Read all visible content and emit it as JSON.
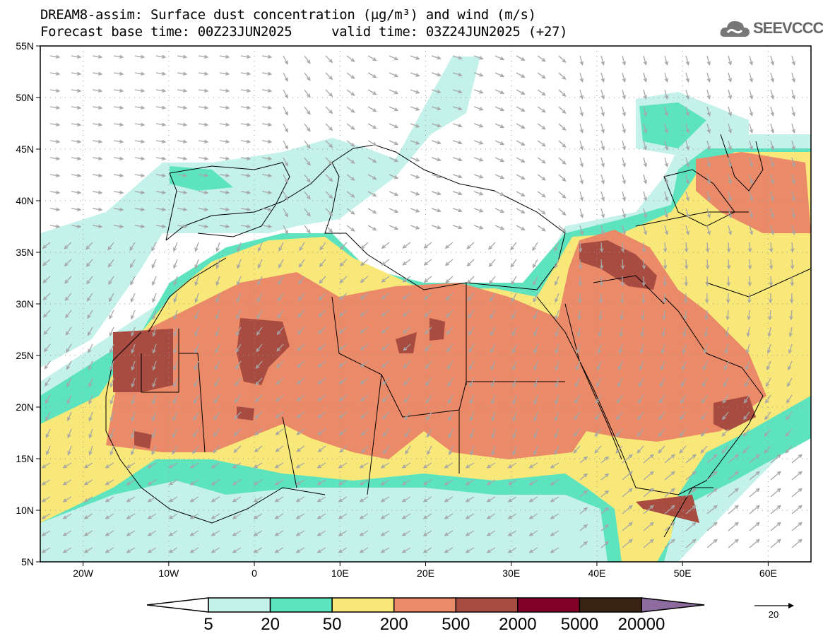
{
  "header": {
    "title": "DREAM8-assim: Surface dust concentration (µg/m³) and wind (m/s)",
    "subtitle": "Forecast base time: 00Z23JUN2025     valid time: 03Z24JUN2025 (+27)",
    "logo_text": "SEEVCCC"
  },
  "map": {
    "lat_labels": [
      "55N",
      "50N",
      "45N",
      "40N",
      "35N",
      "30N",
      "25N",
      "20N",
      "15N",
      "10N",
      "5N"
    ],
    "lon_labels": [
      "20W",
      "10W",
      "0",
      "10E",
      "20E",
      "30E",
      "40E",
      "50E",
      "60E"
    ],
    "lon_range": [
      -25,
      65
    ],
    "lat_range": [
      5,
      55
    ]
  },
  "colorbar": {
    "levels": [
      "5",
      "20",
      "50",
      "200",
      "500",
      "2000",
      "5000",
      "20000"
    ],
    "colors": [
      "#c4f2ea",
      "#5de4bf",
      "#f8e87a",
      "#eb8a68",
      "#a84b40",
      "#830029",
      "#3c2415"
    ],
    "over_color": "#8f6ca0",
    "reference_vector_label": "20"
  }
}
